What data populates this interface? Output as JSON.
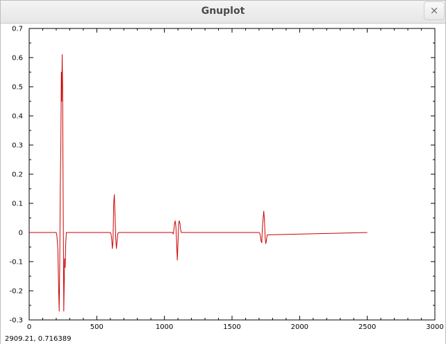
{
  "window": {
    "title": "Gnuplot",
    "close_label": "×"
  },
  "status": {
    "coordinates": "2909.21,  0.716389"
  },
  "colors": {
    "series": "#cc0000",
    "axis": "#000000"
  },
  "chart_data": {
    "type": "line",
    "title": "",
    "xlabel": "",
    "ylabel": "",
    "xlim": [
      0,
      3000
    ],
    "ylim": [
      -0.3,
      0.7
    ],
    "x_ticks": [
      0,
      500,
      1000,
      1500,
      2000,
      2500,
      3000
    ],
    "x_tick_labels": [
      "0",
      "500",
      "1000",
      "1500",
      "2000",
      "2500",
      "3000"
    ],
    "y_ticks": [
      -0.3,
      -0.2,
      -0.1,
      0,
      0.1,
      0.2,
      0.3,
      0.4,
      0.5,
      0.6,
      0.7
    ],
    "y_tick_labels": [
      "-0.3",
      "-0.2",
      "-0.1",
      "0",
      "0.1",
      "0.2",
      "0.3",
      "0.4",
      "0.5",
      "0.6",
      "0.7"
    ],
    "grid": false,
    "series": [
      {
        "x": [
          0,
          200,
          205,
          212,
          217,
          222,
          226,
          230,
          234,
          238,
          241,
          244,
          247,
          250,
          253,
          256,
          259,
          262,
          266,
          270,
          275,
          280,
          285,
          290,
          295,
          300,
          305,
          310,
          600,
          605,
          610,
          615,
          620,
          625,
          630,
          635,
          640,
          645,
          650,
          655,
          660,
          1060,
          1065,
          1070,
          1075,
          1080,
          1085,
          1090,
          1095,
          1100,
          1105,
          1110,
          1115,
          1120,
          1125,
          1130,
          1135,
          1140,
          1700,
          1705,
          1710,
          1715,
          1720,
          1725,
          1730,
          1735,
          1740,
          1745,
          1750,
          1755,
          1760,
          2500
        ],
        "y": [
          0,
          0,
          -0.01,
          -0.06,
          -0.17,
          -0.27,
          -0.1,
          0.16,
          0.3,
          0.55,
          0.45,
          0.61,
          0.5,
          0.21,
          -0.04,
          -0.27,
          -0.18,
          -0.09,
          -0.12,
          -0.04,
          0,
          0,
          0,
          0,
          0,
          0,
          0,
          0,
          0,
          -0.005,
          -0.02,
          -0.055,
          -0.03,
          0.1,
          0.13,
          0.06,
          -0.02,
          -0.055,
          -0.03,
          -0.005,
          0,
          0,
          -0.005,
          0.01,
          0.03,
          0.04,
          0.02,
          -0.03,
          -0.095,
          -0.04,
          0.03,
          0.04,
          0.03,
          0.01,
          0,
          0,
          0,
          0,
          0,
          -0.003,
          -0.012,
          -0.03,
          -0.035,
          0.02,
          0.05,
          0.073,
          0.04,
          -0.02,
          -0.038,
          -0.025,
          -0.008,
          0
        ]
      }
    ]
  }
}
